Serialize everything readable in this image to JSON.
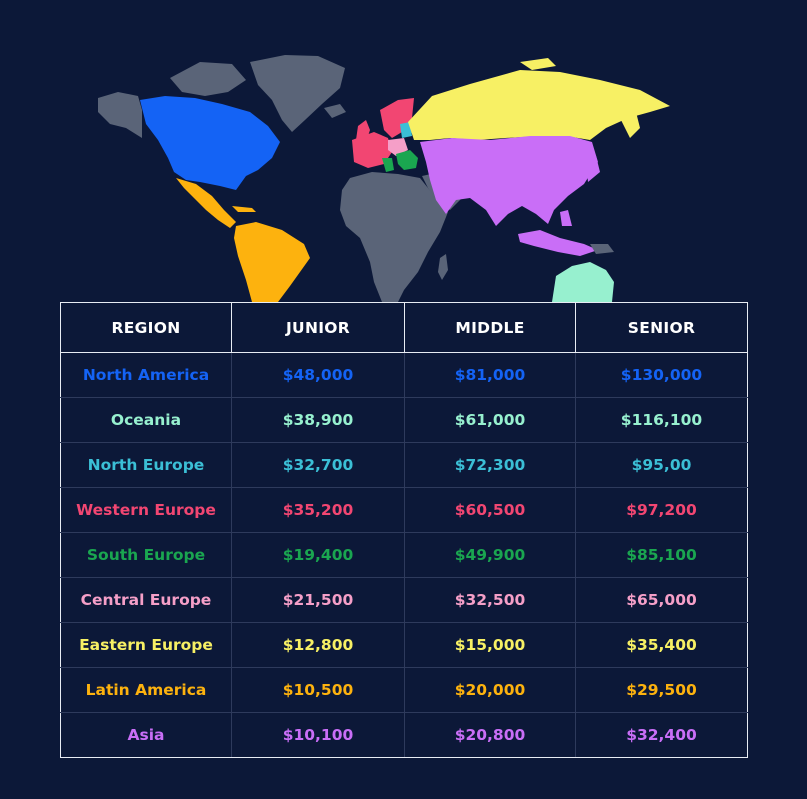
{
  "colors": {
    "background": "#0c1838",
    "land_other": "#5a6478",
    "north_america": "#1463f5",
    "oceania": "#97f0cf",
    "north_europe": "#3bbfd6",
    "western_europe": "#f24672",
    "south_europe": "#1aa650",
    "central_europe": "#f59fc8",
    "eastern_europe": "#f7f064",
    "latin_america": "#fdb20e",
    "asia": "#c96ef7"
  },
  "table": {
    "headers": [
      "REGION",
      "JUNIOR",
      "MIDDLE",
      "SENIOR"
    ],
    "rows": [
      {
        "region": "North America",
        "junior": "$48,000",
        "middle": "$81,000",
        "senior": "$130,000",
        "color": "#1463f5"
      },
      {
        "region": "Oceania",
        "junior": "$38,900",
        "middle": "$61,000",
        "senior": "$116,100",
        "color": "#97f0cf"
      },
      {
        "region": "North Europe",
        "junior": "$32,700",
        "middle": "$72,300",
        "senior": "$95,00",
        "color": "#3bbfd6"
      },
      {
        "region": "Western Europe",
        "junior": "$35,200",
        "middle": "$60,500",
        "senior": "$97,200",
        "color": "#f24672"
      },
      {
        "region": "South Europe",
        "junior": "$19,400",
        "middle": "$49,900",
        "senior": "$85,100",
        "color": "#1aa650"
      },
      {
        "region": "Central Europe",
        "junior": "$21,500",
        "middle": "$32,500",
        "senior": "$65,000",
        "color": "#f59fc8"
      },
      {
        "region": "Eastern Europe",
        "junior": "$12,800",
        "middle": "$15,000",
        "senior": "$35,400",
        "color": "#f7f064"
      },
      {
        "region": "Latin America",
        "junior": "$10,500",
        "middle": "$20,000",
        "senior": "$29,500",
        "color": "#fdb20e"
      },
      {
        "region": "Asia",
        "junior": "$10,100",
        "middle": "$20,800",
        "senior": "$32,400",
        "color": "#c96ef7"
      }
    ]
  }
}
